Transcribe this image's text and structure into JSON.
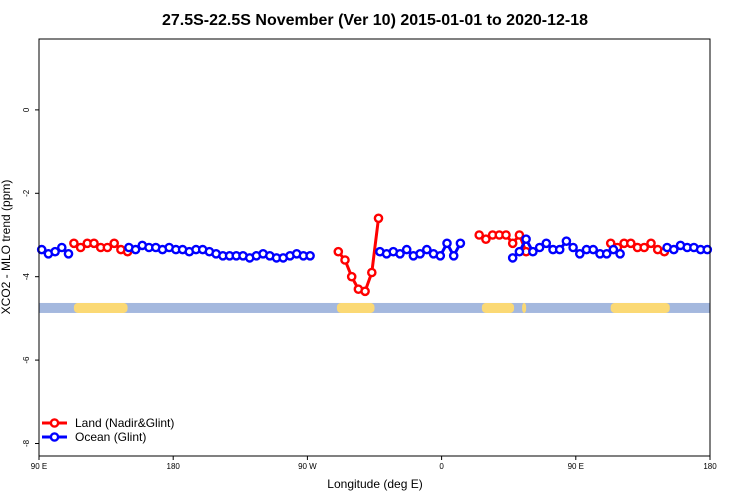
{
  "chart_data": {
    "type": "line",
    "title": "27.5S-22.5S November (Ver 10)   2015-01-01 to 2020-12-18",
    "xlabel": "Longitude (deg E)",
    "ylabel": "XCO2 - MLO trend (ppm)",
    "xlim": [
      90,
      340
    ],
    "ylim": [
      -8.3,
      1.7
    ],
    "x_ticks": [
      {
        "value": 90,
        "label": "90 E"
      },
      {
        "value": 140,
        "label": "180"
      },
      {
        "value": 190,
        "label": "90 W"
      },
      {
        "value": 240,
        "label": "0"
      },
      {
        "value": 290,
        "label": "90 E"
      },
      {
        "value": 340,
        "label": "180"
      }
    ],
    "y_ticks": [
      {
        "value": 0,
        "label": "0"
      },
      {
        "value": -2,
        "label": "-2"
      },
      {
        "value": -4,
        "label": "-4"
      },
      {
        "value": -6,
        "label": "-6"
      },
      {
        "value": -8,
        "label": "-8"
      }
    ],
    "grid": false,
    "legend_position": "bottom-left",
    "series": [
      {
        "name": "Land (Nadir&Glint)",
        "color": "#ff0000",
        "segments": [
          [
            [
              103,
              -3.2
            ],
            [
              105.5,
              -3.3
            ],
            [
              108,
              -3.2
            ],
            [
              110.5,
              -3.2
            ],
            [
              113,
              -3.3
            ],
            [
              115.5,
              -3.3
            ],
            [
              118,
              -3.2
            ],
            [
              120.5,
              -3.35
            ],
            [
              123,
              -3.4
            ]
          ],
          [
            [
              201.5,
              -3.4
            ],
            [
              204,
              -3.6
            ],
            [
              206.5,
              -4.0
            ],
            [
              209,
              -4.3
            ],
            [
              211.5,
              -4.35
            ],
            [
              214,
              -3.9
            ],
            [
              216.5,
              -2.6
            ]
          ],
          [
            [
              254,
              -3.0
            ],
            [
              256.5,
              -3.1
            ],
            [
              259,
              -3.0
            ],
            [
              261.5,
              -3.0
            ],
            [
              264,
              -3.0
            ],
            [
              266.5,
              -3.2
            ],
            [
              269,
              -3.0
            ],
            [
              271.5,
              -3.4
            ]
          ],
          [
            [
              303,
              -3.2
            ],
            [
              305.5,
              -3.3
            ],
            [
              308,
              -3.2
            ],
            [
              310.5,
              -3.2
            ],
            [
              313,
              -3.3
            ],
            [
              315.5,
              -3.3
            ],
            [
              318,
              -3.2
            ],
            [
              320.5,
              -3.35
            ],
            [
              323,
              -3.4
            ]
          ]
        ]
      },
      {
        "name": "Ocean (Glint)",
        "color": "#0000ff",
        "segments": [
          [
            [
              91,
              -3.35
            ],
            [
              93.5,
              -3.45
            ],
            [
              96,
              -3.4
            ],
            [
              98.5,
              -3.3
            ],
            [
              101,
              -3.45
            ]
          ],
          [
            [
              123.5,
              -3.3
            ],
            [
              126,
              -3.35
            ],
            [
              128.5,
              -3.25
            ],
            [
              131,
              -3.3
            ],
            [
              133.5,
              -3.3
            ],
            [
              136,
              -3.35
            ],
            [
              138.5,
              -3.3
            ],
            [
              141,
              -3.35
            ],
            [
              143.5,
              -3.35
            ],
            [
              146,
              -3.4
            ],
            [
              148.5,
              -3.35
            ],
            [
              151,
              -3.35
            ],
            [
              153.5,
              -3.4
            ],
            [
              156,
              -3.45
            ],
            [
              158.5,
              -3.5
            ],
            [
              161,
              -3.5
            ],
            [
              163.5,
              -3.5
            ],
            [
              166,
              -3.5
            ],
            [
              168.5,
              -3.55
            ],
            [
              171,
              -3.5
            ],
            [
              173.5,
              -3.45
            ],
            [
              176,
              -3.5
            ],
            [
              178.5,
              -3.55
            ],
            [
              181,
              -3.55
            ],
            [
              183.5,
              -3.5
            ],
            [
              186,
              -3.45
            ],
            [
              188.5,
              -3.5
            ],
            [
              191,
              -3.5
            ]
          ],
          [
            [
              217,
              -3.4
            ],
            [
              219.5,
              -3.45
            ],
            [
              222,
              -3.4
            ],
            [
              224.5,
              -3.45
            ],
            [
              227,
              -3.35
            ],
            [
              229.5,
              -3.5
            ],
            [
              232,
              -3.45
            ],
            [
              234.5,
              -3.35
            ],
            [
              237,
              -3.45
            ],
            [
              239.5,
              -3.5
            ],
            [
              242,
              -3.2
            ],
            [
              244.5,
              -3.5
            ],
            [
              247,
              -3.2
            ]
          ],
          [
            [
              266.5,
              -3.55
            ],
            [
              269,
              -3.4
            ],
            [
              271.5,
              -3.1
            ],
            [
              274,
              -3.4
            ],
            [
              276.5,
              -3.3
            ],
            [
              279,
              -3.2
            ],
            [
              281.5,
              -3.35
            ],
            [
              284,
              -3.35
            ],
            [
              286.5,
              -3.15
            ],
            [
              289,
              -3.3
            ],
            [
              291.5,
              -3.45
            ],
            [
              294,
              -3.35
            ],
            [
              296.5,
              -3.35
            ],
            [
              299,
              -3.45
            ],
            [
              301.5,
              -3.45
            ],
            [
              304,
              -3.35
            ],
            [
              306.5,
              -3.45
            ]
          ],
          [
            [
              324,
              -3.3
            ],
            [
              326.5,
              -3.35
            ],
            [
              329,
              -3.25
            ],
            [
              331.5,
              -3.3
            ],
            [
              334,
              -3.3
            ],
            [
              336.5,
              -3.35
            ],
            [
              339,
              -3.35
            ]
          ]
        ]
      }
    ],
    "surface_band": {
      "y": -4.75,
      "ocean_color": "#a4b8de",
      "land_color": "#fbd975",
      "land_segments": [
        [
          103,
          123
        ],
        [
          201,
          215
        ],
        [
          255,
          267
        ],
        [
          270,
          271.5
        ],
        [
          303,
          325
        ]
      ]
    }
  }
}
